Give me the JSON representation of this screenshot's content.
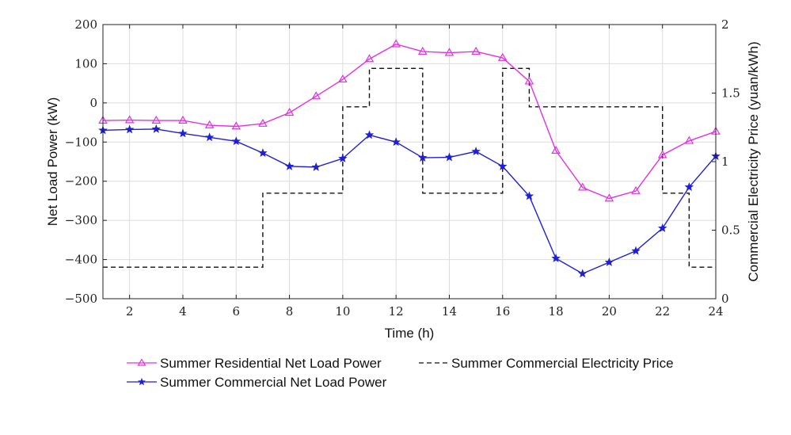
{
  "chart_data": {
    "type": "line",
    "title": "",
    "xlabel": "Time (h)",
    "ylabel_left": "Net Load Power (kW)",
    "ylabel_right": "Commercial Electricity Price (yuan/kWh)",
    "xlim": [
      1,
      24
    ],
    "ylim_left": [
      -500,
      200
    ],
    "ylim_right": [
      0,
      2
    ],
    "x_ticks": [
      2,
      4,
      6,
      8,
      10,
      12,
      14,
      16,
      18,
      20,
      22,
      24
    ],
    "y_ticks_left": [
      -500,
      -400,
      -300,
      -200,
      -100,
      0,
      100,
      200
    ],
    "y_ticks_right": [
      0,
      0.5,
      1,
      1.5,
      2
    ],
    "x_tick_labels": [
      "2",
      "4",
      "6",
      "8",
      "10",
      "12",
      "14",
      "16",
      "18",
      "20",
      "22",
      "24"
    ],
    "y_tick_labels_left": [
      "−500",
      "−400",
      "−300",
      "−200",
      "−100",
      "0",
      "100",
      "200"
    ],
    "y_tick_labels_right": [
      "0",
      "0.5",
      "1",
      "1.5",
      "2"
    ],
    "grid": true,
    "legend_position": "bottom",
    "x": [
      1,
      2,
      3,
      4,
      5,
      6,
      7,
      8,
      9,
      10,
      11,
      12,
      13,
      14,
      15,
      16,
      17,
      18,
      19,
      20,
      21,
      22,
      23,
      24
    ],
    "series": [
      {
        "name": "Summer Residential Net Load Power",
        "axis": "left",
        "style": "solid",
        "marker": "triangle",
        "color": "#e62ee6",
        "values": [
          -45,
          -44,
          -45,
          -45,
          -57,
          -60,
          -53,
          -25,
          17,
          60,
          112,
          150,
          131,
          128,
          131,
          115,
          55,
          -122,
          -216,
          -244,
          -225,
          -133,
          -97,
          -73
        ]
      },
      {
        "name": "Summer Commercial Net Load Power",
        "axis": "left",
        "style": "solid",
        "marker": "star",
        "color": "#1f1fd6",
        "values": [
          -70,
          -68,
          -67,
          -78,
          -88,
          -98,
          -128,
          -162,
          -164,
          -142,
          -82,
          -100,
          -140,
          -139,
          -124,
          -162,
          -238,
          -397,
          -436,
          -407,
          -378,
          -320,
          -215,
          -136
        ]
      },
      {
        "name": "Summer Commercial Electricity Price",
        "axis": "right",
        "style": "dashed-step",
        "marker": "none",
        "color": "#111111",
        "steps": [
          {
            "from": 1,
            "to": 7,
            "value": 0.23
          },
          {
            "from": 7,
            "to": 10,
            "value": 0.77
          },
          {
            "from": 10,
            "to": 11,
            "value": 1.4
          },
          {
            "from": 11,
            "to": 13,
            "value": 1.68
          },
          {
            "from": 13,
            "to": 16,
            "value": 0.77
          },
          {
            "from": 16,
            "to": 17,
            "value": 1.68
          },
          {
            "from": 17,
            "to": 22,
            "value": 1.4
          },
          {
            "from": 22,
            "to": 23,
            "value": 0.77
          },
          {
            "from": 23,
            "to": 24,
            "value": 0.23
          }
        ]
      }
    ]
  }
}
